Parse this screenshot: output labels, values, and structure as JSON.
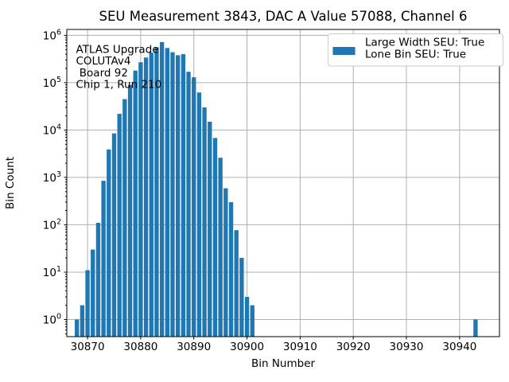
{
  "chart_data": {
    "type": "bar",
    "title": "SEU Measurement 3843, DAC A Value 57088, Channel 6",
    "xlabel": "Bin Number",
    "ylabel": "Bin Count",
    "yscale": "log",
    "grid": true,
    "bar_color": "#1f77b4",
    "grid_color": "#b0b0b0",
    "spine_color": "#000000",
    "legend_position": "upper right",
    "legend_entries": [
      {
        "color": "#1f77b4",
        "label_lines": [
          "Large Width SEU: True",
          "Lone Bin SEU: True"
        ]
      }
    ],
    "annotation_lines": [
      "ATLAS Upgrade",
      "COLUTAv4",
      " Board 92",
      "Chip 1, Run 210"
    ],
    "x_ticks": [
      30870,
      30880,
      30890,
      30900,
      30910,
      30920,
      30930,
      30940
    ],
    "y_tick_base": "10",
    "y_tick_exponents": [
      0,
      1,
      2,
      3,
      4,
      5,
      6
    ],
    "xlim": [
      30866.1,
      30947.5
    ],
    "ylim": [
      0.435,
      1330000
    ],
    "points": [
      [
        30868,
        1
      ],
      [
        30869,
        2
      ],
      [
        30870,
        11
      ],
      [
        30871,
        30
      ],
      [
        30872,
        110
      ],
      [
        30873,
        850
      ],
      [
        30874,
        3900
      ],
      [
        30875,
        8500
      ],
      [
        30876,
        22000
      ],
      [
        30877,
        45000
      ],
      [
        30878,
        90000
      ],
      [
        30879,
        180000
      ],
      [
        30880,
        270000
      ],
      [
        30881,
        340000
      ],
      [
        30882,
        430000
      ],
      [
        30883,
        560000
      ],
      [
        30884,
        720000
      ],
      [
        30885,
        540000
      ],
      [
        30886,
        440000
      ],
      [
        30887,
        380000
      ],
      [
        30888,
        400000
      ],
      [
        30889,
        170000
      ],
      [
        30890,
        130000
      ],
      [
        30891,
        62000
      ],
      [
        30892,
        30000
      ],
      [
        30893,
        15000
      ],
      [
        30894,
        6800
      ],
      [
        30895,
        2600
      ],
      [
        30896,
        590
      ],
      [
        30897,
        300
      ],
      [
        30898,
        77
      ],
      [
        30899,
        20
      ],
      [
        30900,
        3
      ],
      [
        30901,
        2
      ],
      [
        30943,
        1
      ]
    ]
  }
}
